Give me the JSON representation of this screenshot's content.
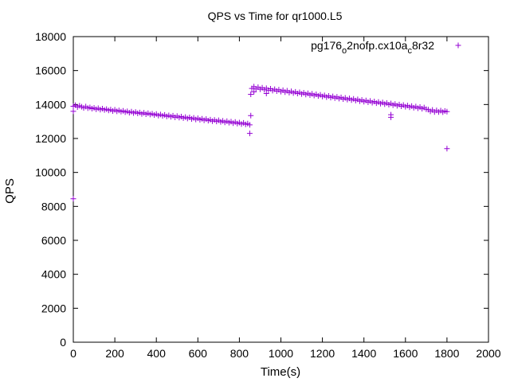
{
  "chart_data": {
    "type": "scatter",
    "title": "QPS vs Time for qr1000.L5",
    "xlabel": "Time(s)",
    "ylabel": "QPS",
    "xlim": [
      0,
      2000
    ],
    "ylim": [
      0,
      18000
    ],
    "xticks": [
      0,
      200,
      400,
      600,
      800,
      1000,
      1200,
      1400,
      1600,
      1800,
      2000
    ],
    "yticks": [
      0,
      2000,
      4000,
      6000,
      8000,
      10000,
      12000,
      14000,
      16000,
      18000
    ],
    "grid": false,
    "legend_position": "top-right",
    "series": [
      {
        "name": "pg176_o2nofp.cx10a_c8r32",
        "legend_main": "pg176",
        "legend_parts": [
          [
            "o",
            "2nofp.cx10a"
          ],
          [
            "c",
            "8r32"
          ]
        ],
        "color": "#9400d3",
        "marker": "plus",
        "points": [
          [
            0,
            13900
          ],
          [
            10,
            13960
          ],
          [
            20,
            13850
          ],
          [
            30,
            13930
          ],
          [
            40,
            13870
          ],
          [
            50,
            13800
          ],
          [
            60,
            13880
          ],
          [
            70,
            13790
          ],
          [
            80,
            13830
          ],
          [
            90,
            13760
          ],
          [
            100,
            13800
          ],
          [
            110,
            13720
          ],
          [
            120,
            13780
          ],
          [
            130,
            13700
          ],
          [
            140,
            13760
          ],
          [
            150,
            13680
          ],
          [
            160,
            13730
          ],
          [
            170,
            13650
          ],
          [
            180,
            13700
          ],
          [
            190,
            13620
          ],
          [
            200,
            13690
          ],
          [
            210,
            13600
          ],
          [
            220,
            13650
          ],
          [
            230,
            13580
          ],
          [
            240,
            13630
          ],
          [
            250,
            13550
          ],
          [
            260,
            13600
          ],
          [
            270,
            13520
          ],
          [
            280,
            13580
          ],
          [
            290,
            13500
          ],
          [
            300,
            13560
          ],
          [
            310,
            13480
          ],
          [
            320,
            13530
          ],
          [
            330,
            13450
          ],
          [
            340,
            13510
          ],
          [
            350,
            13430
          ],
          [
            360,
            13490
          ],
          [
            370,
            13410
          ],
          [
            380,
            13460
          ],
          [
            390,
            13380
          ],
          [
            400,
            13440
          ],
          [
            410,
            13350
          ],
          [
            420,
            13410
          ],
          [
            430,
            13330
          ],
          [
            440,
            13390
          ],
          [
            450,
            13300
          ],
          [
            460,
            13360
          ],
          [
            470,
            13280
          ],
          [
            480,
            13340
          ],
          [
            490,
            13250
          ],
          [
            500,
            13320
          ],
          [
            510,
            13230
          ],
          [
            520,
            13290
          ],
          [
            530,
            13200
          ],
          [
            540,
            13260
          ],
          [
            550,
            13180
          ],
          [
            560,
            13240
          ],
          [
            570,
            13150
          ],
          [
            580,
            13210
          ],
          [
            590,
            13120
          ],
          [
            600,
            13190
          ],
          [
            610,
            13100
          ],
          [
            620,
            13160
          ],
          [
            630,
            13070
          ],
          [
            640,
            13140
          ],
          [
            650,
            13050
          ],
          [
            660,
            13110
          ],
          [
            670,
            13020
          ],
          [
            680,
            13090
          ],
          [
            690,
            13000
          ],
          [
            700,
            13070
          ],
          [
            710,
            12980
          ],
          [
            720,
            13040
          ],
          [
            730,
            12950
          ],
          [
            740,
            13020
          ],
          [
            750,
            12930
          ],
          [
            760,
            12990
          ],
          [
            770,
            12900
          ],
          [
            780,
            12970
          ],
          [
            790,
            12880
          ],
          [
            800,
            12940
          ],
          [
            810,
            12850
          ],
          [
            820,
            12920
          ],
          [
            830,
            12830
          ],
          [
            840,
            12880
          ],
          [
            850,
            12800
          ],
          [
            0,
            8450
          ],
          [
            0,
            13600
          ],
          [
            850,
            12300
          ],
          [
            855,
            13350
          ],
          [
            855,
            14600
          ],
          [
            870,
            14750
          ],
          [
            930,
            14650
          ],
          [
            860,
            14950
          ],
          [
            870,
            15050
          ],
          [
            880,
            14920
          ],
          [
            890,
            15020
          ],
          [
            900,
            14900
          ],
          [
            910,
            14990
          ],
          [
            920,
            14870
          ],
          [
            930,
            14960
          ],
          [
            940,
            14840
          ],
          [
            950,
            14930
          ],
          [
            960,
            14820
          ],
          [
            970,
            14900
          ],
          [
            980,
            14790
          ],
          [
            990,
            14870
          ],
          [
            1000,
            14760
          ],
          [
            1010,
            14840
          ],
          [
            1020,
            14730
          ],
          [
            1030,
            14810
          ],
          [
            1040,
            14700
          ],
          [
            1050,
            14780
          ],
          [
            1060,
            14680
          ],
          [
            1070,
            14750
          ],
          [
            1080,
            14650
          ],
          [
            1090,
            14720
          ],
          [
            1100,
            14620
          ],
          [
            1110,
            14690
          ],
          [
            1120,
            14590
          ],
          [
            1130,
            14660
          ],
          [
            1140,
            14560
          ],
          [
            1150,
            14630
          ],
          [
            1160,
            14530
          ],
          [
            1170,
            14600
          ],
          [
            1180,
            14500
          ],
          [
            1190,
            14570
          ],
          [
            1200,
            14470
          ],
          [
            1210,
            14540
          ],
          [
            1220,
            14440
          ],
          [
            1230,
            14510
          ],
          [
            1240,
            14410
          ],
          [
            1250,
            14480
          ],
          [
            1260,
            14380
          ],
          [
            1270,
            14450
          ],
          [
            1280,
            14350
          ],
          [
            1290,
            14420
          ],
          [
            1300,
            14320
          ],
          [
            1310,
            14390
          ],
          [
            1320,
            14290
          ],
          [
            1330,
            14360
          ],
          [
            1340,
            14260
          ],
          [
            1350,
            14330
          ],
          [
            1360,
            14230
          ],
          [
            1370,
            14300
          ],
          [
            1380,
            14200
          ],
          [
            1390,
            14270
          ],
          [
            1400,
            14170
          ],
          [
            1410,
            14240
          ],
          [
            1420,
            14140
          ],
          [
            1430,
            14210
          ],
          [
            1440,
            14110
          ],
          [
            1450,
            14180
          ],
          [
            1460,
            14080
          ],
          [
            1470,
            14150
          ],
          [
            1480,
            14050
          ],
          [
            1490,
            14120
          ],
          [
            1500,
            14020
          ],
          [
            1510,
            14090
          ],
          [
            1520,
            13990
          ],
          [
            1530,
            14060
          ],
          [
            1540,
            13960
          ],
          [
            1550,
            14030
          ],
          [
            1560,
            13930
          ],
          [
            1570,
            14000
          ],
          [
            1580,
            13900
          ],
          [
            1590,
            13970
          ],
          [
            1600,
            13870
          ],
          [
            1610,
            13940
          ],
          [
            1620,
            13840
          ],
          [
            1630,
            13910
          ],
          [
            1640,
            13810
          ],
          [
            1650,
            13880
          ],
          [
            1660,
            13780
          ],
          [
            1670,
            13850
          ],
          [
            1680,
            13750
          ],
          [
            1690,
            13820
          ],
          [
            1700,
            13720
          ],
          [
            1710,
            13700
          ],
          [
            1720,
            13600
          ],
          [
            1730,
            13680
          ],
          [
            1740,
            13560
          ],
          [
            1750,
            13650
          ],
          [
            1760,
            13560
          ],
          [
            1770,
            13640
          ],
          [
            1780,
            13550
          ],
          [
            1790,
            13620
          ],
          [
            1800,
            13580
          ],
          [
            1530,
            13250
          ],
          [
            1530,
            13400
          ],
          [
            1800,
            11400
          ]
        ]
      }
    ]
  }
}
